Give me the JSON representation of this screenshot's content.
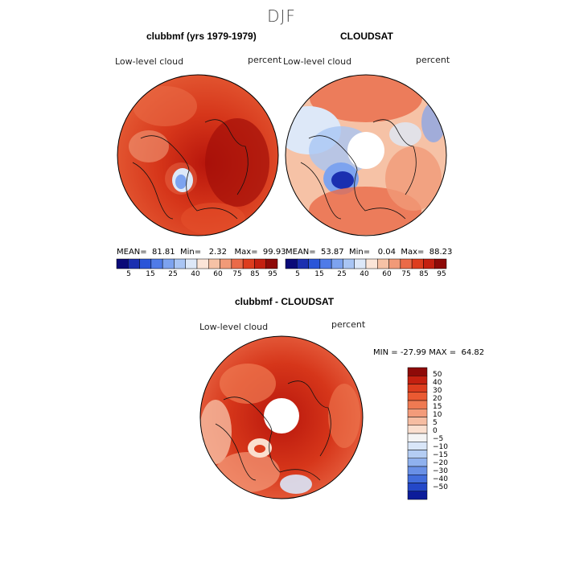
{
  "header": {
    "season": "DJF"
  },
  "panels": [
    {
      "title": "clubbmf (yrs 1979-1979)",
      "variable": "Low-level cloud",
      "units": "percent",
      "stats": {
        "mean_label": "MEAN=",
        "mean": "81.81",
        "min_label": "Min=",
        "min": "2.32",
        "max_label": "Max=",
        "max": "99.93"
      }
    },
    {
      "title": "CLOUDSAT",
      "variable": "Low-level cloud",
      "units": "percent",
      "stats": {
        "mean_label": "MEAN=",
        "mean": "53.87",
        "min_label": "Min=",
        "min": "0.04",
        "max_label": "Max=",
        "max": "88.23"
      }
    },
    {
      "title": "clubbmf - CLOUDSAT",
      "variable": "Low-level cloud",
      "units": "percent",
      "stats": {
        "min_label": "MIN =",
        "min": "-27.99",
        "max_label": "MAX =",
        "max": "64.82"
      }
    }
  ],
  "colorbar_abs": {
    "colors": [
      "#0a0a78",
      "#1a2fb0",
      "#2a55d8",
      "#4f7be8",
      "#7da3ef",
      "#a9c5f4",
      "#dde8f8",
      "#fbe5d8",
      "#f6c2a6",
      "#f19a78",
      "#ea6a48",
      "#dd3d1e",
      "#c42010",
      "#8e0a08"
    ],
    "labels": [
      "5",
      "15",
      "25",
      "40",
      "60",
      "75",
      "85",
      "95"
    ]
  },
  "colorbar_diff": {
    "colors_top_to_bottom": [
      "#8e0a08",
      "#c42010",
      "#dd3d1e",
      "#ea5a32",
      "#ef7a52",
      "#f39b7a",
      "#f6bda2",
      "#fadfcf",
      "#f4f4f4",
      "#d9e6f8",
      "#b4cdf3",
      "#8fb1ee",
      "#6990e6",
      "#426ddc",
      "#2448c8",
      "#0c1c9a"
    ],
    "labels_top_to_bottom": [
      "50",
      "40",
      "30",
      "20",
      "15",
      "10",
      "5",
      "0",
      "−5",
      "−10",
      "−15",
      "−20",
      "−30",
      "−40",
      "−50"
    ]
  }
}
